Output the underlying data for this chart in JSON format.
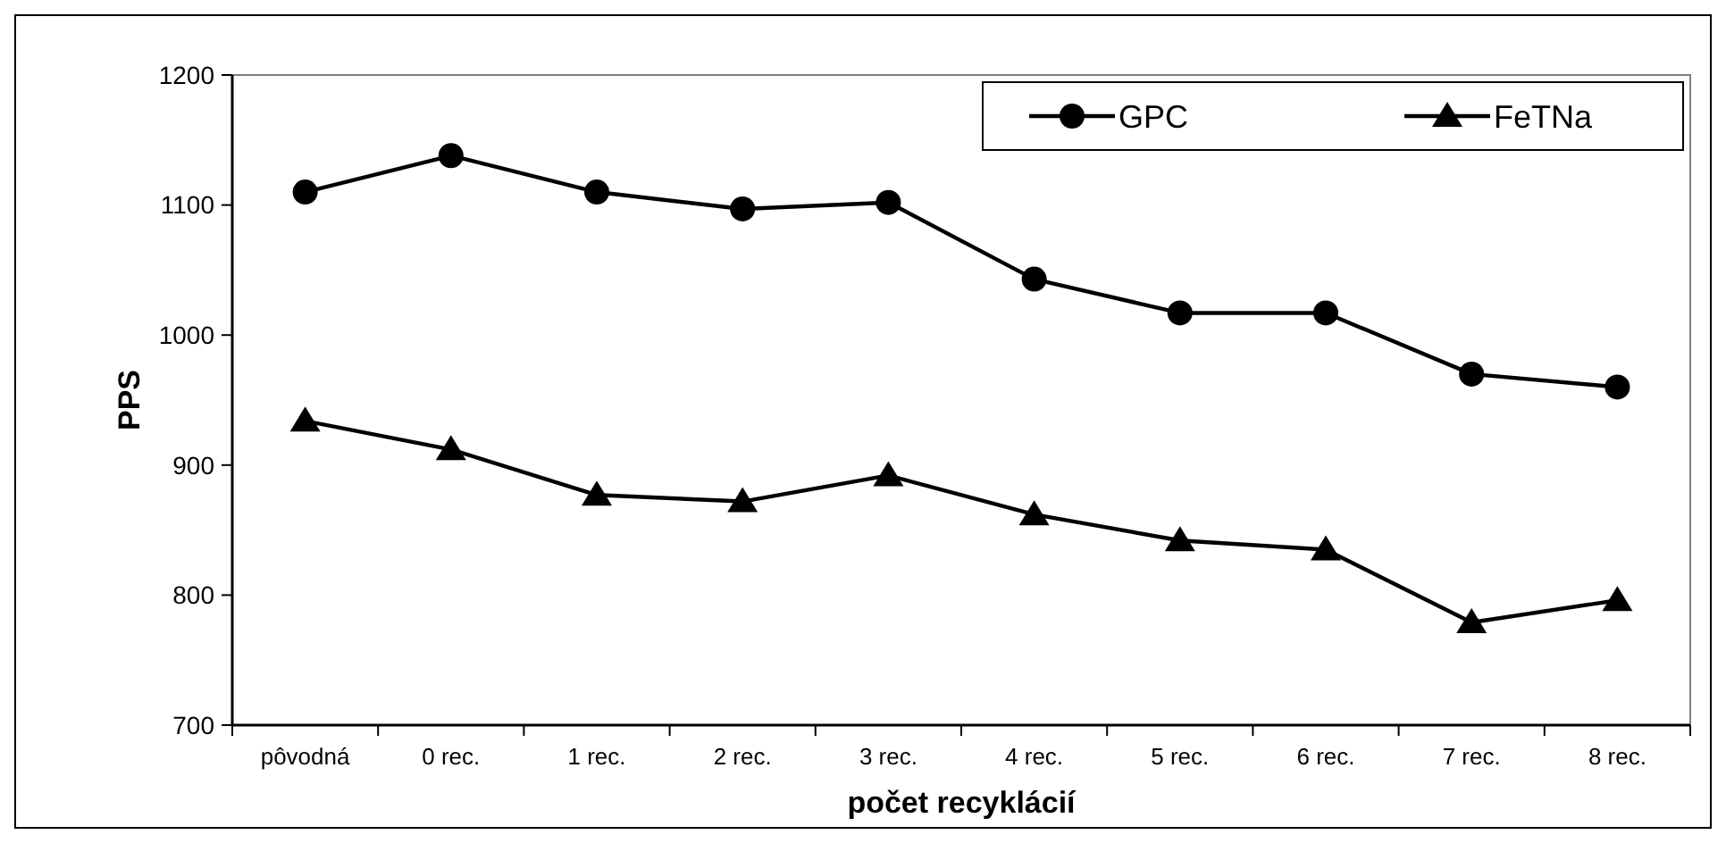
{
  "chart_data": {
    "type": "line",
    "xlabel": "počet recyklácií",
    "ylabel": "PPS",
    "categories": [
      "pôvodná",
      "0 rec.",
      "1 rec.",
      "2 rec.",
      "3 rec.",
      "4 rec.",
      "5 rec.",
      "6 rec.",
      "7 rec.",
      "8 rec."
    ],
    "series": [
      {
        "name": "GPC",
        "color": "#000000",
        "marker": "circle",
        "values": [
          1110,
          1138,
          1110,
          1097,
          1102,
          1043,
          1017,
          1017,
          970,
          960
        ]
      },
      {
        "name": "FeTNa",
        "color": "#000000",
        "marker": "triangle",
        "values": [
          934,
          912,
          877,
          872,
          892,
          862,
          842,
          835,
          779,
          796
        ]
      }
    ],
    "ylim": [
      700,
      1200
    ],
    "yticks": [
      700,
      800,
      900,
      1000,
      1100,
      1200
    ],
    "grid": false,
    "legend": "top right",
    "line_style": "solid"
  }
}
